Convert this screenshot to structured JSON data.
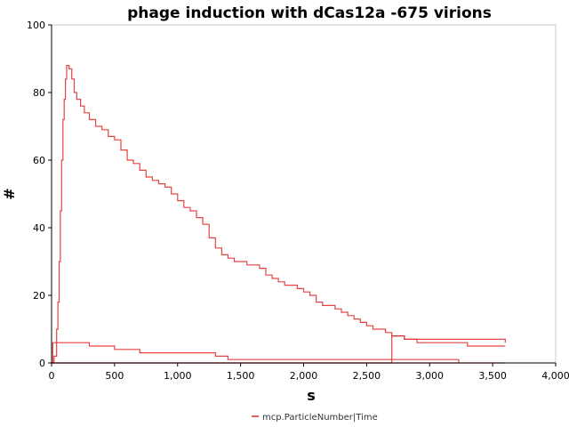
{
  "chart_data": {
    "type": "line",
    "title": "phage induction with dCas12a -675 virions",
    "xlabel": "s",
    "ylabel": "#",
    "xlim": [
      0,
      4000
    ],
    "ylim": [
      0,
      100
    ],
    "x_ticks": [
      0,
      500,
      1000,
      1500,
      2000,
      2500,
      3000,
      3500,
      4000
    ],
    "x_tick_labels": [
      "0",
      "500",
      "1,000",
      "1,500",
      "2,000",
      "2,500",
      "3,000",
      "3,500",
      "4,000"
    ],
    "y_ticks": [
      0,
      20,
      40,
      60,
      80,
      100
    ],
    "y_tick_labels": [
      "0",
      "20",
      "40",
      "60",
      "80",
      "100"
    ],
    "grid": false,
    "legend": {
      "placement": "bottom-center",
      "label": "mcp.ParticleNumber|Time"
    },
    "line_color": "#e03030",
    "series": [
      {
        "x": [
          0,
          20,
          40,
          50,
          60,
          70,
          80,
          90,
          100,
          110,
          120,
          140,
          160,
          180,
          200,
          230,
          260,
          300,
          350,
          400,
          450,
          500,
          550,
          600,
          650,
          700,
          750,
          800,
          850,
          900,
          950,
          1000,
          1050,
          1100,
          1150,
          1200,
          1250,
          1300,
          1350,
          1400,
          1450,
          1500,
          1550,
          1600,
          1650,
          1700,
          1750,
          1800,
          1850,
          1900,
          1950,
          2000,
          2050,
          2100,
          2150,
          2200,
          2250,
          2300,
          2350,
          2400,
          2450,
          2500,
          2550,
          2600,
          2650,
          2700,
          2750,
          2800,
          2850,
          3000,
          3200,
          3400,
          3600
        ],
        "y": [
          0,
          2,
          10,
          18,
          30,
          45,
          60,
          72,
          78,
          84,
          88,
          87,
          84,
          80,
          78,
          76,
          74,
          72,
          70,
          69,
          67,
          66,
          63,
          60,
          59,
          57,
          55,
          54,
          53,
          52,
          50,
          48,
          46,
          45,
          43,
          41,
          37,
          34,
          32,
          31,
          30,
          30,
          29,
          29,
          28,
          26,
          25,
          24,
          23,
          23,
          22,
          21,
          20,
          18,
          17,
          17,
          16,
          15,
          14,
          13,
          12,
          11,
          10,
          10,
          9,
          8,
          8,
          7,
          7,
          7,
          7,
          7,
          6
        ]
      },
      {
        "x": [
          0,
          10,
          20,
          200,
          300,
          400,
          500,
          600,
          700,
          900,
          1100,
          1200,
          1300,
          1400,
          2000,
          2500,
          3000,
          3230
        ],
        "y": [
          0,
          6,
          6,
          6,
          5,
          5,
          4,
          4,
          3,
          3,
          3,
          3,
          2,
          1,
          1,
          1,
          1,
          0
        ]
      },
      {
        "x": [
          0,
          2690,
          2700,
          2800,
          2900,
          3100,
          3300,
          3600
        ],
        "y": [
          0,
          0,
          8,
          7,
          6,
          6,
          5,
          5
        ]
      },
      {
        "x": [
          0,
          3600
        ],
        "y": [
          0,
          0
        ]
      }
    ]
  }
}
